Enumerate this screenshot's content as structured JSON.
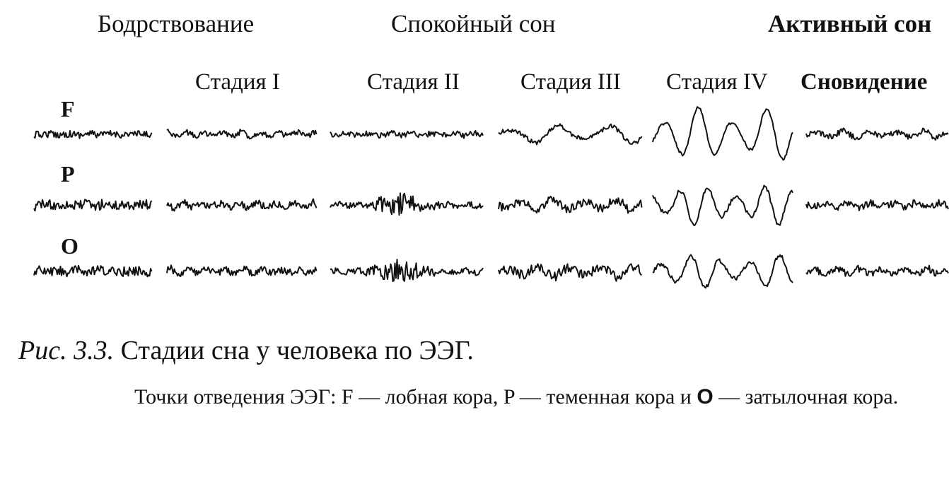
{
  "groups": {
    "wake": "Бодрствование",
    "quiet": "Спокойный сон",
    "active": "Активный сон"
  },
  "stages": {
    "s1": "Стадия I",
    "s2": "Стадия II",
    "s3": "Стадия III",
    "s4": "Стадия IV",
    "dream": "Сновидение"
  },
  "leads": {
    "f": "F",
    "p": "P",
    "o": "O"
  },
  "caption": {
    "number": "Рис. 3.3.",
    "title": "Стадии сна у человека по ЭЭГ."
  },
  "notes": {
    "text_a": "Точки отведения ЭЭГ: F — лобная кора, P — теменная кора и ",
    "lead_o": "O",
    "text_b": " — затылочная кора."
  },
  "eeg": {
    "columns": [
      "wake",
      "s1",
      "s2",
      "s3",
      "s4",
      "dream"
    ],
    "rows": [
      "f",
      "p",
      "o"
    ]
  }
}
